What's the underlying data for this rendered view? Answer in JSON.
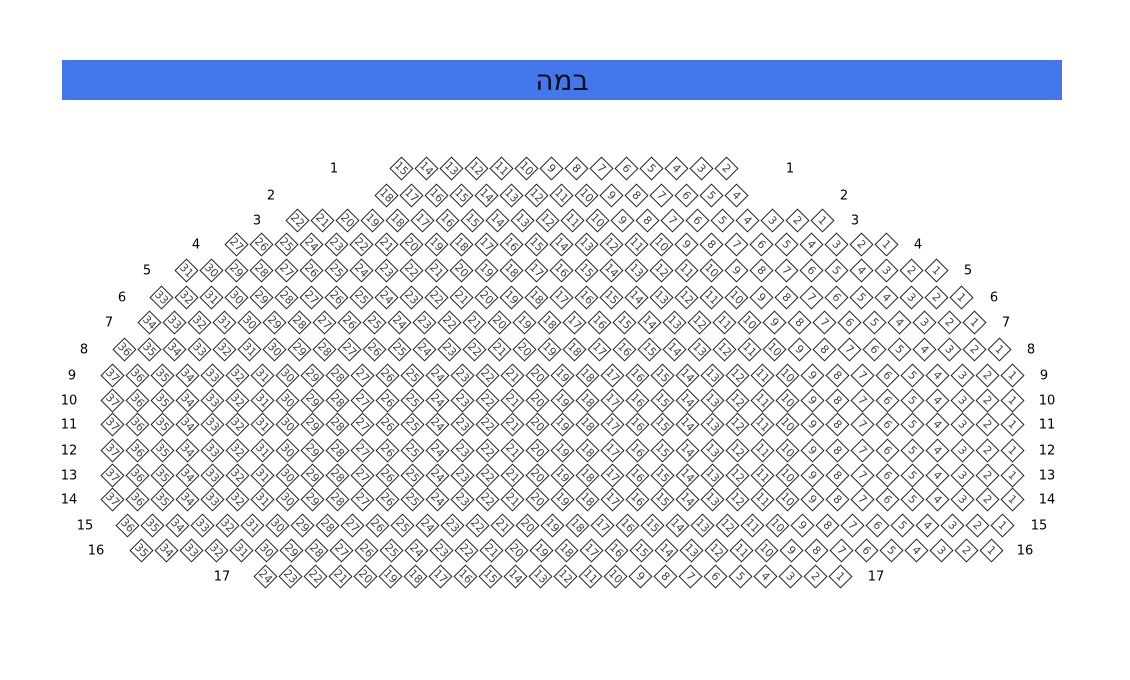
{
  "stage": {
    "label": "במה",
    "color": "#4577ec"
  },
  "rows": [
    {
      "label": "1",
      "from": 15,
      "to": 2
    },
    {
      "label": "2",
      "from": 18,
      "to": 4
    },
    {
      "label": "3",
      "from": 22,
      "to": 1
    },
    {
      "label": "4",
      "from": 27,
      "to": 1
    },
    {
      "label": "5",
      "from": 31,
      "to": 1
    },
    {
      "label": "6",
      "from": 33,
      "to": 1
    },
    {
      "label": "7",
      "from": 34,
      "to": 1
    },
    {
      "label": "8",
      "from": 36,
      "to": 1
    },
    {
      "label": "9",
      "from": 37,
      "to": 1
    },
    {
      "label": "10",
      "from": 37,
      "to": 1
    },
    {
      "label": "11",
      "from": 37,
      "to": 1
    },
    {
      "label": "12",
      "from": 37,
      "to": 1
    },
    {
      "label": "13",
      "from": 37,
      "to": 1
    },
    {
      "label": "14",
      "from": 37,
      "to": 1
    },
    {
      "label": "15",
      "from": 36,
      "to": 1
    },
    {
      "label": "16",
      "from": 35,
      "to": 1
    },
    {
      "label": "17",
      "from": 24,
      "to": 1
    }
  ]
}
